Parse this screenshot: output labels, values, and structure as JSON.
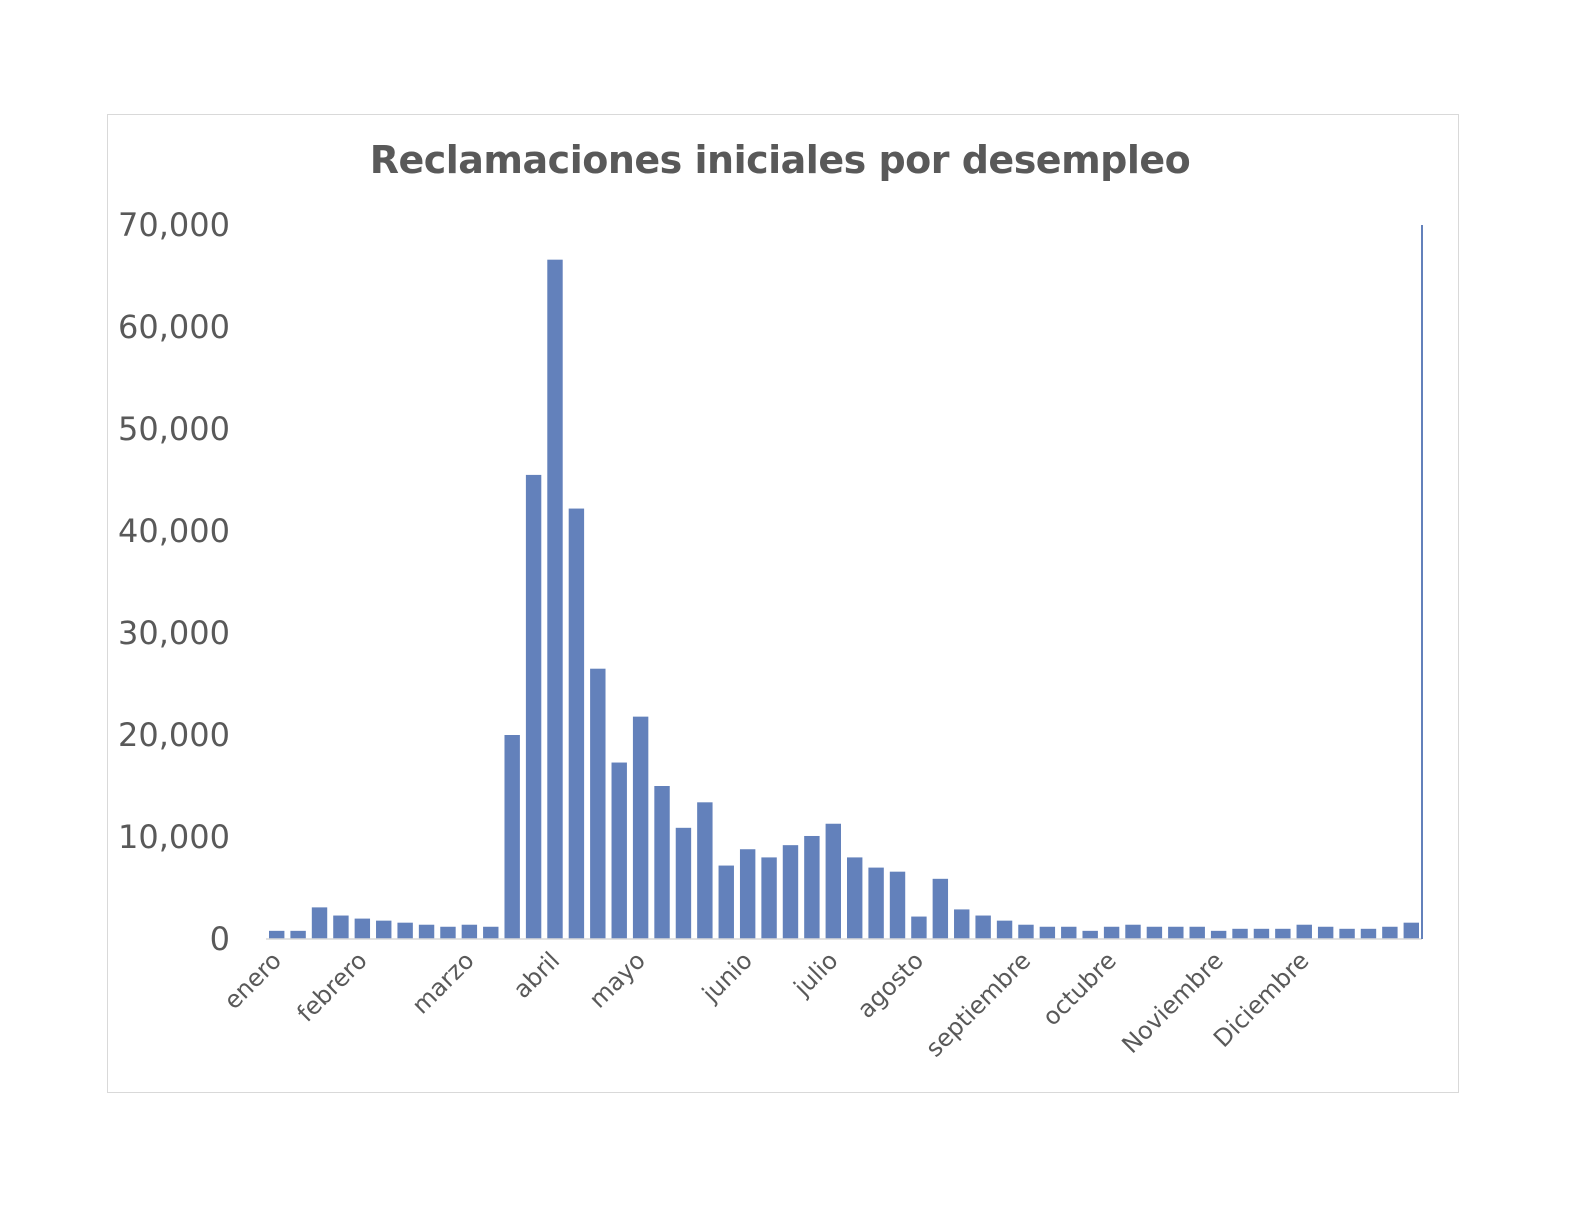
{
  "chart_data": {
    "type": "bar",
    "title": "Reclamaciones iniciales por desempleo",
    "xlabel": "",
    "ylabel": "",
    "ylim": [
      0,
      70000
    ],
    "yticks": [
      "0",
      "10,000",
      "20,000",
      "30,000",
      "40,000",
      "50,000",
      "60,000",
      "70,000"
    ],
    "month_labels": [
      {
        "label": "enero",
        "index": 0
      },
      {
        "label": "febrero",
        "index": 4
      },
      {
        "label": "marzo",
        "index": 9
      },
      {
        "label": "abril",
        "index": 13
      },
      {
        "label": "mayo",
        "index": 17
      },
      {
        "label": "junio",
        "index": 22
      },
      {
        "label": "julio",
        "index": 26
      },
      {
        "label": "agosto",
        "index": 30
      },
      {
        "label": "septiembre",
        "index": 35
      },
      {
        "label": "octubre",
        "index": 39
      },
      {
        "label": "Noviembre",
        "index": 44
      },
      {
        "label": "Diciembre",
        "index": 48
      }
    ],
    "values": [
      800,
      800,
      3100,
      2300,
      2000,
      1800,
      1600,
      1400,
      1200,
      1400,
      1200,
      20000,
      45500,
      66600,
      42200,
      26500,
      17300,
      21800,
      15000,
      10900,
      13400,
      7200,
      8800,
      8000,
      9200,
      10100,
      11300,
      8000,
      7000,
      6600,
      2200,
      5900,
      2900,
      2300,
      1800,
      1400,
      1200,
      1200,
      800,
      1200,
      1400,
      1200,
      1200,
      1200,
      800,
      1000,
      1000,
      1000,
      1400,
      1200,
      1000,
      1000,
      1200,
      1600
    ],
    "bar_color": "#6381bb",
    "grid": false,
    "legend": "none"
  }
}
